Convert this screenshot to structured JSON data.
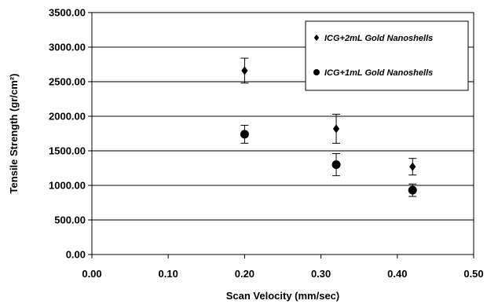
{
  "chart_data": {
    "type": "scatter",
    "title": "",
    "xlabel": "Scan Velocity (mm/sec)",
    "ylabel": "Tensile Strength (gr/cm²)",
    "xlim": [
      0,
      0.5
    ],
    "ylim": [
      0,
      3500
    ],
    "x_ticks": [
      "0.00",
      "0.10",
      "0.20",
      "0.30",
      "0.40",
      "0.50"
    ],
    "y_ticks": [
      "0.00",
      "500.00",
      "1000.00",
      "1500.00",
      "2000.00",
      "2500.00",
      "3000.00",
      "3500.00"
    ],
    "grid": "horizontal",
    "legend_position": "top-right",
    "series": [
      {
        "name": "ICG+2mL Gold Nanoshells",
        "marker": "diamond",
        "x": [
          0.2,
          0.32,
          0.42
        ],
        "y": [
          2660,
          1820,
          1270
        ],
        "error": [
          180,
          210,
          120
        ]
      },
      {
        "name": "ICG+1mL Gold Nanoshells",
        "marker": "circle",
        "x": [
          0.2,
          0.32,
          0.42
        ],
        "y": [
          1740,
          1300,
          930
        ],
        "error": [
          130,
          160,
          90
        ]
      }
    ]
  }
}
